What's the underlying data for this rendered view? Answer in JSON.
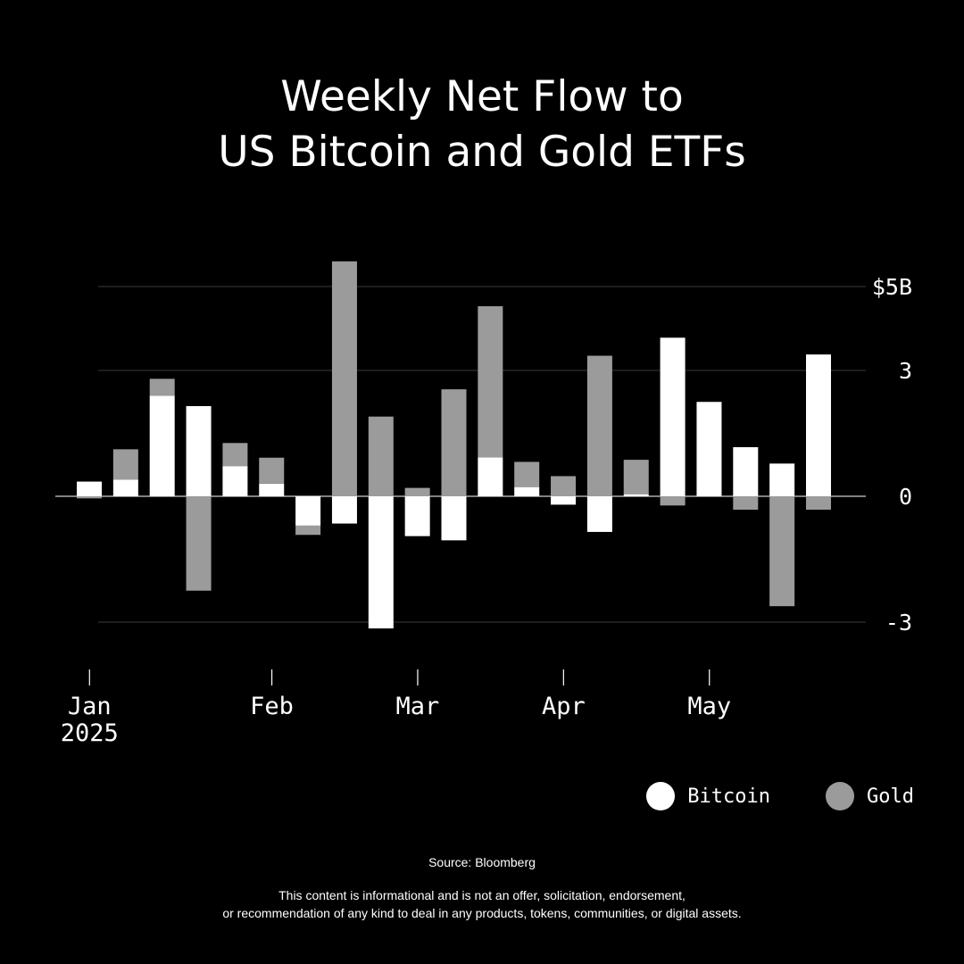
{
  "colors": {
    "background": "#000000",
    "bitcoin": "#ffffff",
    "gold": "#9b9b9b",
    "grid": "#3a3a3a"
  },
  "chart_data": {
    "type": "bar",
    "stacked": true,
    "title_lines": [
      "Weekly Net Flow to",
      "US Bitcoin and Gold ETFs"
    ],
    "ylim": [
      -4.1,
      5
    ],
    "y_ticks": [
      {
        "value": 5,
        "label": "$5B"
      },
      {
        "value": 3,
        "label": "3"
      },
      {
        "value": 0,
        "label": "0"
      },
      {
        "value": -3,
        "label": "-3"
      }
    ],
    "x_ticks": [
      {
        "week_index": 0.35,
        "label": "Jan",
        "sublabel": "2025"
      },
      {
        "week_index": 5.35,
        "label": "Feb",
        "sublabel": ""
      },
      {
        "week_index": 9.35,
        "label": "Mar",
        "sublabel": ""
      },
      {
        "week_index": 13.35,
        "label": "Apr",
        "sublabel": ""
      },
      {
        "week_index": 17.35,
        "label": "May",
        "sublabel": ""
      }
    ],
    "series": [
      {
        "name": "Bitcoin",
        "values": [
          0.35,
          0.4,
          2.4,
          2.15,
          0.72,
          0.3,
          -0.7,
          -0.65,
          -3.15,
          -0.95,
          -1.05,
          0.93,
          0.22,
          -0.2,
          -0.85,
          0.05,
          3.78,
          2.25,
          1.17,
          0.78,
          3.38
        ]
      },
      {
        "name": "Gold",
        "values": [
          -0.05,
          0.72,
          0.4,
          -2.25,
          0.55,
          0.62,
          -0.22,
          5.6,
          1.9,
          0.2,
          2.55,
          3.6,
          0.6,
          0.48,
          3.35,
          0.82,
          -0.22,
          0.0,
          -0.32,
          -2.62,
          -0.32
        ]
      }
    ]
  },
  "legend": {
    "bitcoin": "Bitcoin",
    "gold": "Gold"
  },
  "source": "Source: Bloomberg",
  "disclaimer_lines": [
    "This content is informational and is not an offer, solicitation, endorsement,",
    "or recommendation of any kind to deal in any products, tokens, communities, or digital assets."
  ]
}
